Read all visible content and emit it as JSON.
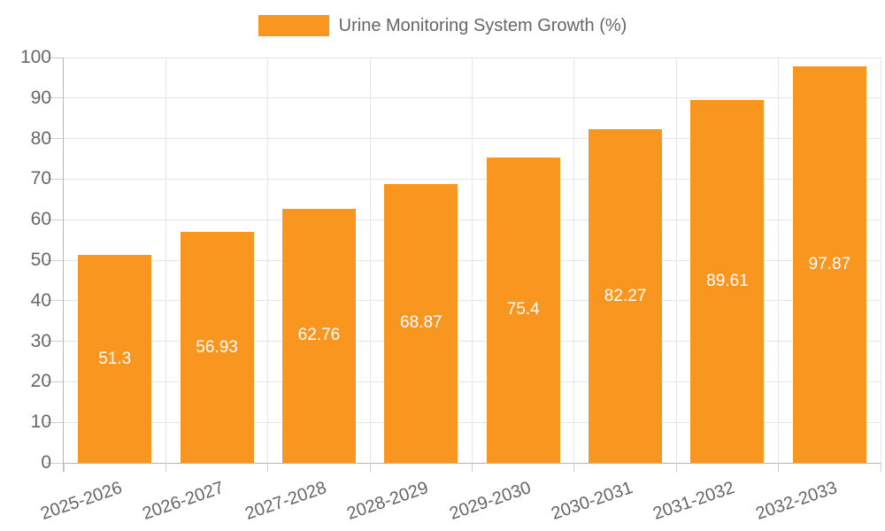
{
  "chart_data": {
    "type": "bar",
    "title": "",
    "legend": "Urine Monitoring System Growth (%)",
    "legend_position": "top-center",
    "categories": [
      "2025-2026",
      "2026-2027",
      "2027-2028",
      "2028-2029",
      "2029-2030",
      "2030-2031",
      "2031-2032",
      "2032-2033"
    ],
    "series": [
      {
        "name": "Urine Monitoring System Growth (%)",
        "values": [
          51.3,
          56.93,
          62.76,
          68.87,
          75.4,
          82.27,
          89.61,
          97.87
        ],
        "value_labels": [
          "51.3",
          "56.93",
          "62.76",
          "68.87",
          "75.4",
          "82.27",
          "89.61",
          "97.87"
        ]
      }
    ],
    "xlabel": "",
    "ylabel": "",
    "ylim": [
      0,
      100
    ],
    "y_ticks": [
      0,
      10,
      20,
      30,
      40,
      50,
      60,
      70,
      80,
      90,
      100
    ],
    "grid": "horizontal and vertical light-gray gridlines",
    "x_label_rotation_deg": -19,
    "colors": {
      "bar": "#F8961F",
      "grid": "#E6E6E6",
      "axis": "#B6B6B6",
      "tick": "#CDCDCD",
      "text": "#666666",
      "value_label": "#FFFFFF",
      "background": "#FFFFFF"
    }
  }
}
